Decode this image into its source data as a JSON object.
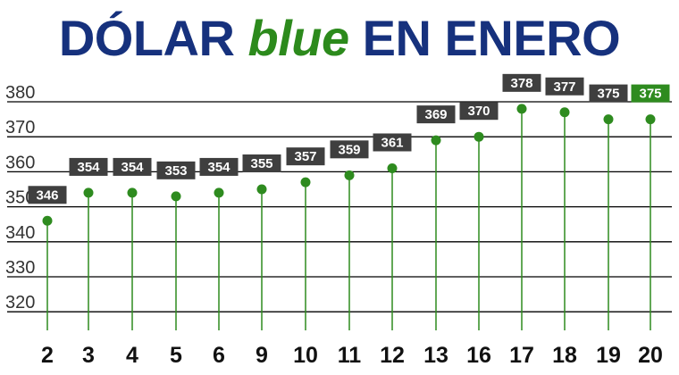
{
  "title": {
    "part1": "DÓLAR ",
    "part2": "blue",
    "part3": " EN ENERO"
  },
  "colors": {
    "title_main": "#16317d",
    "title_accent": "#2c8a1c",
    "series": "#2e8b1f",
    "label_bg": "#3f3f3f",
    "label_bg_last": "#2e8b1f",
    "label_text": "#ffffff",
    "gridline": "#000000"
  },
  "chart_data": {
    "type": "line",
    "categories": [
      "2",
      "3",
      "4",
      "5",
      "6",
      "9",
      "10",
      "11",
      "12",
      "13",
      "16",
      "17",
      "18",
      "19",
      "20"
    ],
    "values": [
      346,
      354,
      354,
      353,
      354,
      355,
      357,
      359,
      361,
      369,
      370,
      378,
      377,
      375,
      375
    ],
    "y_ticks": [
      "380",
      "370",
      "360",
      "350",
      "340",
      "330",
      "320"
    ],
    "ylim": [
      310,
      385
    ],
    "grid": true,
    "markers": "dots with vertical drop lines",
    "data_labels": true,
    "last_label_highlight": true
  }
}
